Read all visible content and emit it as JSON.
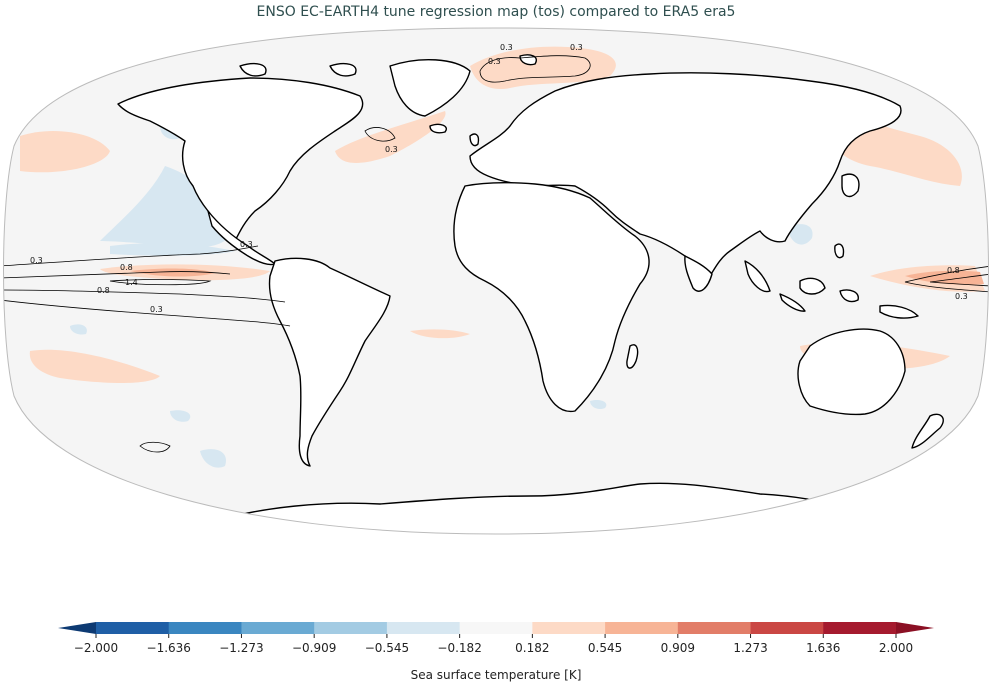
{
  "title": "ENSO EC-EARTH4 tune regression map (tos) compared to ERA5 era5",
  "colorbar": {
    "label": "Sea surface temperature [K]",
    "ticks": [
      "−2.000",
      "−1.636",
      "−1.273",
      "−0.909",
      "−0.545",
      "−0.182",
      "0.182",
      "0.545",
      "0.909",
      "1.273",
      "1.636",
      "2.000"
    ],
    "colors": [
      "#1f5fa6",
      "#3a86c0",
      "#6aaad3",
      "#a3cbe3",
      "#d7e7f1",
      "#f7f7f7",
      "#fddac6",
      "#f7b496",
      "#e27d68",
      "#ca4744",
      "#a51a2e"
    ],
    "under_color": "#0d3a73",
    "over_color": "#8b1024"
  },
  "contour_labels": [
    "0.3",
    "0.3",
    "0.3",
    "0.3",
    "0.3",
    "0.8",
    "1.4",
    "0.8",
    "0.3",
    "0.3",
    "0.8",
    "0.3"
  ],
  "colors": {
    "ocean": "#f5f5f5",
    "land": "#ffffff",
    "coast": "#000000",
    "frame": "#bbbbbb",
    "title": "#2f4f4f"
  }
}
